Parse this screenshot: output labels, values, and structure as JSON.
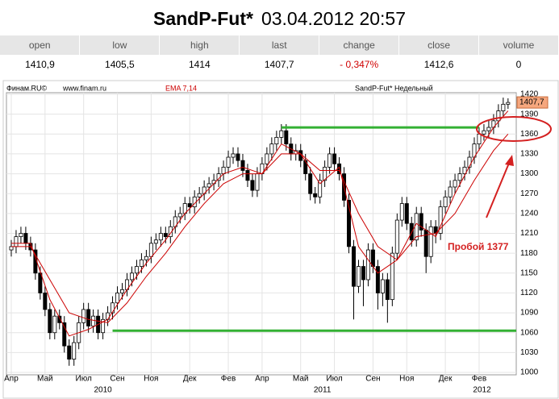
{
  "header": {
    "symbol": "SandP-Fut*",
    "datetime": "03.04.2012 20:57"
  },
  "quote": {
    "columns": [
      "open",
      "low",
      "high",
      "last",
      "change",
      "close",
      "volume"
    ],
    "values": [
      "1410,9",
      "1405,5",
      "1414",
      "1407,7",
      "- 0,347%",
      "1412,6",
      "0"
    ]
  },
  "chart_data": {
    "type": "candlestick",
    "source": "Финам.RU©",
    "site": "www.finam.ru",
    "indicator": "EMA 7,14",
    "title": "SandP-Fut* Недельный",
    "open": [
      1185,
      1190,
      1205,
      1210,
      1195,
      1185,
      1150,
      1120,
      1095,
      1060,
      1085,
      1075,
      1040,
      1020,
      1045,
      1075,
      1095,
      1070,
      1085,
      1060,
      1080,
      1090,
      1105,
      1120,
      1125,
      1140,
      1150,
      1160,
      1170,
      1175,
      1195,
      1200,
      1210,
      1205,
      1220,
      1235,
      1240,
      1255,
      1250,
      1265,
      1270,
      1280,
      1285,
      1290,
      1300,
      1310,
      1325,
      1330,
      1320,
      1305,
      1290,
      1275,
      1300,
      1315,
      1330,
      1345,
      1355,
      1365,
      1345,
      1330,
      1335,
      1320,
      1300,
      1270,
      1265,
      1290,
      1310,
      1330,
      1315,
      1300,
      1260,
      1190,
      1130,
      1160,
      1140,
      1185,
      1160,
      1120,
      1140,
      1110,
      1180,
      1230,
      1255,
      1225,
      1200,
      1240,
      1215,
      1175,
      1220,
      1210,
      1250,
      1265,
      1280,
      1290,
      1300,
      1310,
      1325,
      1345,
      1360,
      1365,
      1370,
      1380,
      1395,
      1405
    ],
    "high": [
      1200,
      1215,
      1220,
      1220,
      1205,
      1195,
      1160,
      1130,
      1105,
      1095,
      1095,
      1085,
      1050,
      1055,
      1085,
      1105,
      1105,
      1095,
      1095,
      1090,
      1100,
      1115,
      1130,
      1135,
      1150,
      1160,
      1170,
      1180,
      1185,
      1205,
      1210,
      1220,
      1220,
      1230,
      1245,
      1250,
      1265,
      1265,
      1275,
      1280,
      1290,
      1295,
      1300,
      1310,
      1320,
      1335,
      1340,
      1340,
      1330,
      1315,
      1300,
      1310,
      1325,
      1340,
      1355,
      1365,
      1375,
      1375,
      1355,
      1345,
      1345,
      1330,
      1310,
      1280,
      1300,
      1320,
      1340,
      1340,
      1325,
      1310,
      1270,
      1200,
      1170,
      1170,
      1195,
      1195,
      1170,
      1150,
      1150,
      1190,
      1240,
      1265,
      1265,
      1235,
      1250,
      1250,
      1225,
      1230,
      1230,
      1260,
      1275,
      1290,
      1300,
      1310,
      1320,
      1335,
      1355,
      1370,
      1375,
      1380,
      1390,
      1405,
      1415,
      1414
    ],
    "low": [
      1175,
      1180,
      1195,
      1185,
      1175,
      1140,
      1110,
      1085,
      1050,
      1050,
      1065,
      1030,
      1010,
      1010,
      1035,
      1065,
      1060,
      1060,
      1050,
      1050,
      1070,
      1080,
      1095,
      1110,
      1115,
      1130,
      1140,
      1150,
      1160,
      1165,
      1185,
      1190,
      1195,
      1195,
      1210,
      1225,
      1230,
      1240,
      1240,
      1255,
      1260,
      1270,
      1275,
      1280,
      1290,
      1300,
      1315,
      1310,
      1295,
      1280,
      1265,
      1265,
      1290,
      1305,
      1320,
      1335,
      1345,
      1335,
      1320,
      1320,
      1310,
      1290,
      1260,
      1255,
      1255,
      1280,
      1300,
      1305,
      1290,
      1250,
      1180,
      1080,
      1120,
      1100,
      1130,
      1150,
      1095,
      1100,
      1075,
      1100,
      1170,
      1220,
      1215,
      1190,
      1190,
      1205,
      1150,
      1165,
      1195,
      1200,
      1240,
      1255,
      1270,
      1280,
      1290,
      1300,
      1315,
      1335,
      1350,
      1355,
      1360,
      1370,
      1385,
      1398
    ],
    "close": [
      1190,
      1205,
      1210,
      1195,
      1185,
      1150,
      1120,
      1095,
      1060,
      1085,
      1075,
      1040,
      1020,
      1045,
      1075,
      1095,
      1070,
      1085,
      1060,
      1080,
      1090,
      1105,
      1120,
      1125,
      1140,
      1150,
      1160,
      1170,
      1175,
      1195,
      1200,
      1210,
      1205,
      1220,
      1235,
      1240,
      1255,
      1250,
      1265,
      1270,
      1280,
      1285,
      1290,
      1300,
      1310,
      1325,
      1330,
      1320,
      1305,
      1290,
      1275,
      1300,
      1315,
      1330,
      1345,
      1355,
      1365,
      1345,
      1330,
      1335,
      1320,
      1300,
      1270,
      1265,
      1290,
      1310,
      1330,
      1315,
      1300,
      1260,
      1190,
      1130,
      1160,
      1140,
      1185,
      1160,
      1120,
      1140,
      1110,
      1180,
      1230,
      1255,
      1225,
      1200,
      1240,
      1215,
      1175,
      1220,
      1210,
      1250,
      1265,
      1280,
      1290,
      1300,
      1310,
      1325,
      1345,
      1360,
      1365,
      1370,
      1380,
      1395,
      1405,
      1407.7
    ],
    "up_color": "#ffffff",
    "down_color": "#000000",
    "ema": [
      {
        "x": [
          0,
          4,
          8,
          12,
          16,
          20,
          24,
          28,
          32,
          36,
          40,
          44,
          48,
          52,
          56,
          60,
          64,
          68,
          72,
          76,
          80,
          84,
          88,
          92,
          96,
          100,
          103
        ],
        "values": [
          1195,
          1195,
          1110,
          1055,
          1065,
          1080,
          1125,
          1165,
          1200,
          1240,
          1270,
          1300,
          1310,
          1300,
          1345,
          1330,
          1285,
          1310,
          1190,
          1150,
          1170,
          1225,
          1205,
          1270,
          1325,
          1370,
          1395
        ],
        "color": "#cc0000"
      },
      {
        "x": [
          0,
          4,
          8,
          12,
          16,
          20,
          24,
          28,
          32,
          36,
          40,
          44,
          48,
          52,
          56,
          60,
          64,
          68,
          72,
          76,
          80,
          84,
          88,
          92,
          96,
          100,
          103
        ],
        "values": [
          1190,
          1190,
          1140,
          1090,
          1080,
          1075,
          1105,
          1145,
          1180,
          1220,
          1255,
          1285,
          1300,
          1300,
          1330,
          1330,
          1305,
          1305,
          1240,
          1190,
          1170,
          1205,
          1210,
          1240,
          1290,
          1335,
          1360
        ],
        "color": "#cc0000"
      }
    ],
    "levels": [
      {
        "value": 1370,
        "start": 56,
        "end": 97,
        "color": "#33b033"
      },
      {
        "value": 1063,
        "start": 21,
        "end": 104.7,
        "color": "#33b033"
      }
    ],
    "last": {
      "value": 1407.7,
      "label": "1407,7"
    },
    "annotation": "Пробой 1377",
    "xlim": [
      -1,
      104.7
    ],
    "xticks": [
      {
        "value": 0,
        "label": "Апр"
      },
      {
        "value": 7,
        "label": "Май"
      },
      {
        "value": 15,
        "label": "Июл"
      },
      {
        "value": 22,
        "label": "Сен"
      },
      {
        "value": 29,
        "label": "Ноя"
      },
      {
        "value": 37,
        "label": "Дек"
      },
      {
        "value": 45,
        "label": "Фев"
      },
      {
        "value": 52,
        "label": "Апр"
      },
      {
        "value": 60,
        "label": "Май"
      },
      {
        "value": 67,
        "label": "Июл"
      },
      {
        "value": 75,
        "label": "Сен"
      },
      {
        "value": 82,
        "label": "Ноя"
      },
      {
        "value": 90,
        "label": "Дек"
      },
      {
        "value": 97,
        "label": "Фев"
      }
    ],
    "year_labels": [
      {
        "value": 19,
        "label": "2010"
      },
      {
        "value": 64.5,
        "label": "2011"
      },
      {
        "value": 97.6,
        "label": "2012"
      }
    ],
    "ylim": [
      1000,
      1420
    ],
    "yticks": [
      1000,
      1030,
      1060,
      1090,
      1120,
      1150,
      1180,
      1210,
      1240,
      1270,
      1300,
      1330,
      1360,
      1390,
      1420
    ],
    "grid": true
  }
}
